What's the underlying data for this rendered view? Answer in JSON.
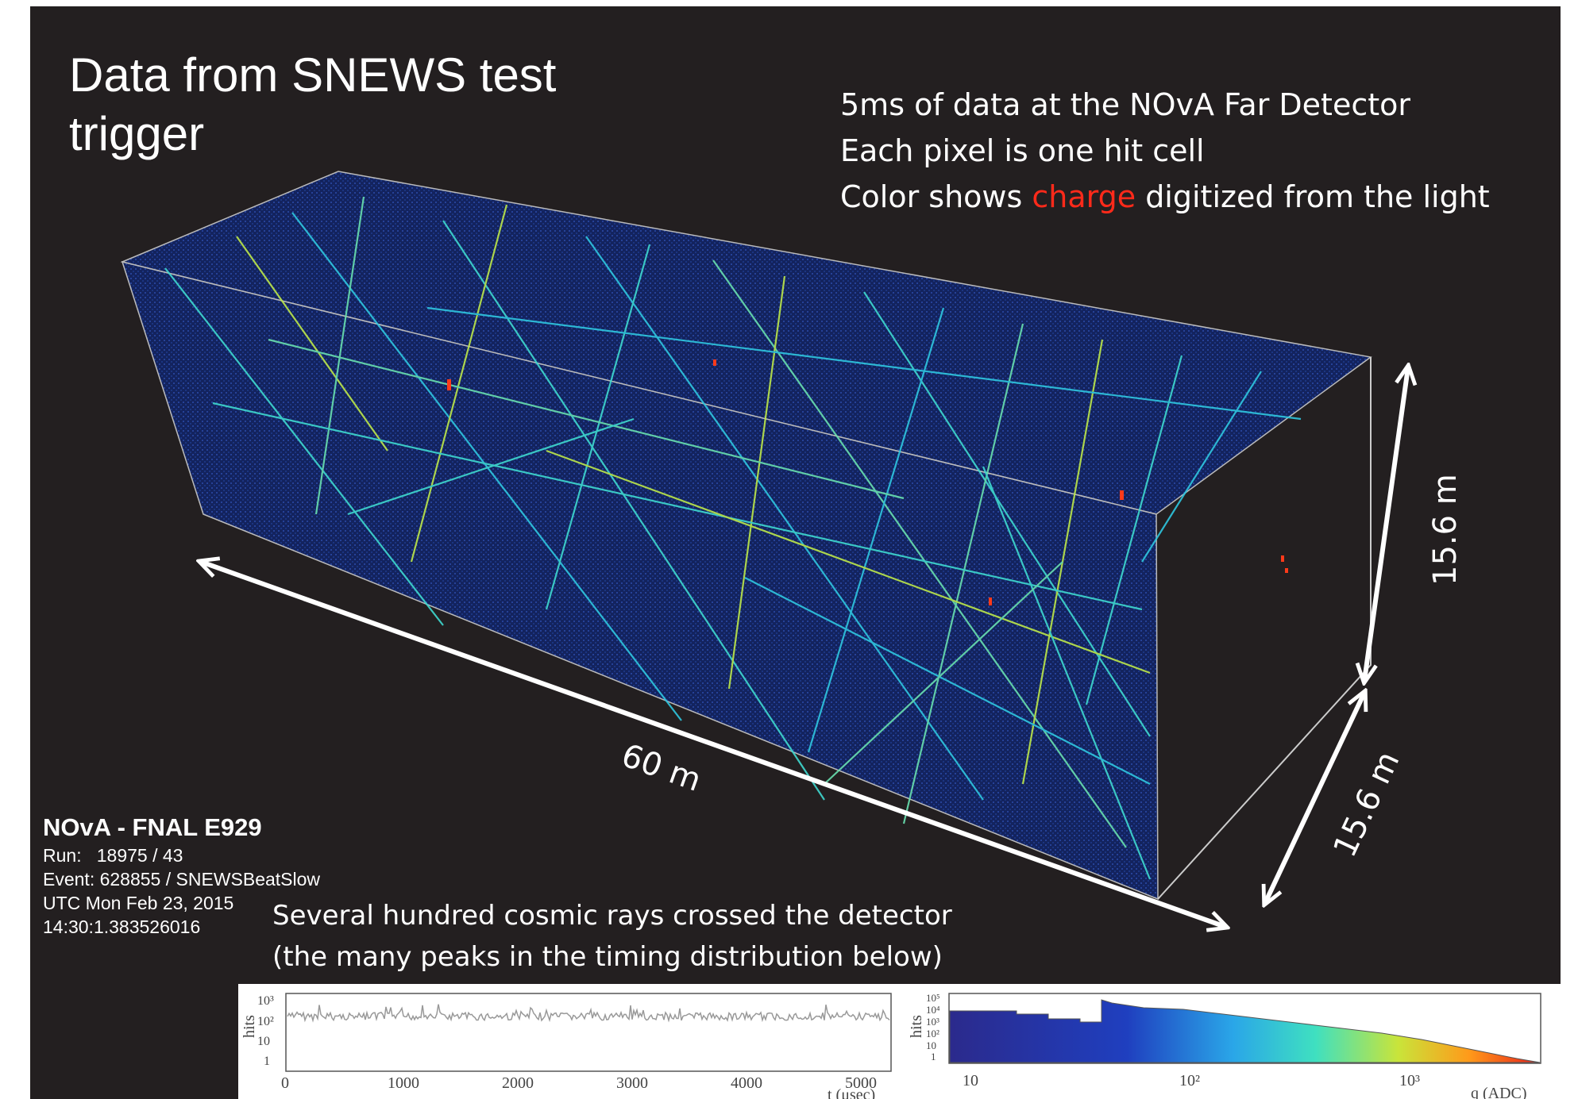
{
  "title": "Data from SNEWS test\ntrigger",
  "description": {
    "line1": "5ms of data at the NOvA Far Detector",
    "line2": "Each pixel is one hit cell",
    "line3_before": "Color shows ",
    "line3_accent": "charge",
    "line3_after": " digitized from the light"
  },
  "dimensions": {
    "length": "60 m",
    "height": "15.6 m",
    "width": "15.6 m"
  },
  "event_info": {
    "experiment": "NOvA - FNAL E929",
    "run": "Run:   18975 / 43",
    "event": "Event: 628855 / SNEWSBeatSlow",
    "date": "UTC Mon Feb 23, 2015",
    "time": "14:30:1.383526016"
  },
  "cosmic_text": {
    "line1": "Several hundred cosmic rays crossed the detector",
    "line2": "(the many peaks in the timing distribution below)"
  },
  "timing_plot": {
    "ylabel": "hits",
    "xlabel": "t (μsec)",
    "yticks": [
      "10³",
      "10²",
      "10",
      "1"
    ],
    "xticks": [
      "0",
      "1000",
      "2000",
      "3000",
      "4000",
      "5000"
    ]
  },
  "charge_plot": {
    "ylabel": "hits",
    "xlabel": "q (ADC)",
    "yticks": [
      "10⁵",
      "10⁴",
      "10³",
      "10²",
      "10",
      "1"
    ],
    "xticks": [
      "10",
      "10²",
      "10³"
    ]
  },
  "colors": {
    "background": "#231f20",
    "detector": "#13235e",
    "accent": "#ff2a1a"
  }
}
